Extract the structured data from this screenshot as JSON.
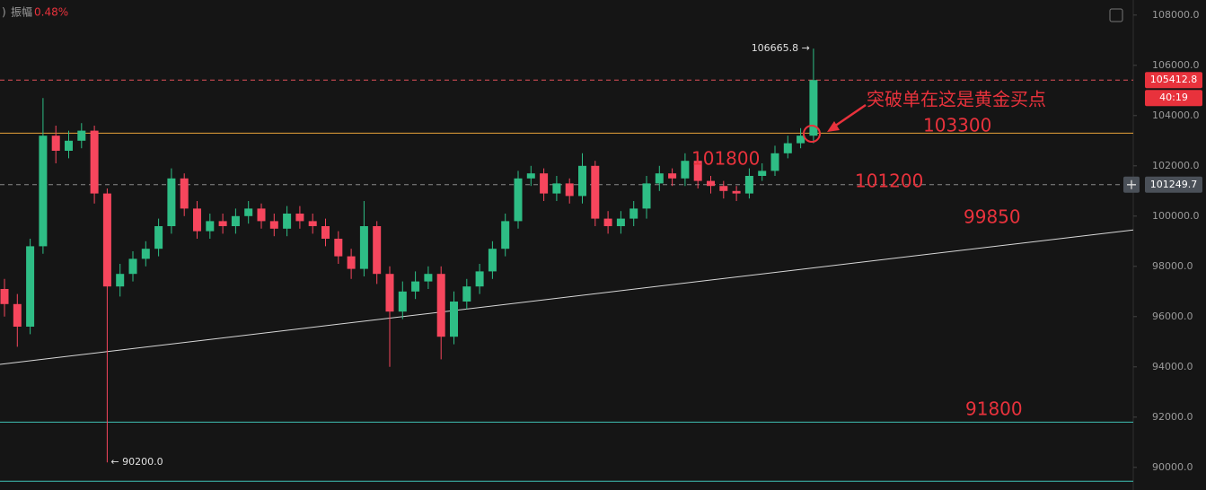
{
  "chart_data": {
    "type": "candlestick",
    "amplitude_label": "振幅",
    "amplitude": "0.48%",
    "ylim": [
      89100,
      108600
    ],
    "yticks": [
      {
        "value": 108000,
        "label": "108000.0"
      },
      {
        "value": 106000,
        "label": "106000.0"
      },
      {
        "value": 104000,
        "label": "104000.0"
      },
      {
        "value": 102000,
        "label": "102000.0"
      },
      {
        "value": 100000,
        "label": "100000.0"
      },
      {
        "value": 98000,
        "label": "98000.0"
      },
      {
        "value": 96000,
        "label": "96000.0"
      },
      {
        "value": 94000,
        "label": "94000.0"
      },
      {
        "value": 92000,
        "label": "92000.0"
      },
      {
        "value": 90000,
        "label": "90000.0"
      }
    ],
    "up_color": "#2ebd85",
    "down_color": "#f6465d",
    "candles": {
      "open": [
        97100,
        96500,
        95600,
        98800,
        103200,
        102600,
        103000,
        103400,
        100900,
        97200,
        97700,
        98300,
        98700,
        99600,
        101500,
        100300,
        99400,
        99800,
        99600,
        100000,
        100300,
        99800,
        99500,
        100100,
        99800,
        99600,
        99100,
        98400,
        97900,
        99600,
        97700,
        96200,
        97000,
        97400,
        97700,
        95200,
        96600,
        97200,
        97800,
        98700,
        99800,
        101500,
        101700,
        100900,
        101300,
        100800,
        102000,
        99900,
        99600,
        99900,
        100300,
        101300,
        101700,
        101500,
        102200,
        101400,
        101200,
        101000,
        100900,
        101600,
        101800,
        102500,
        102900,
        103200
      ],
      "high": [
        97500,
        96900,
        99100,
        104700,
        103600,
        103400,
        103700,
        103600,
        101100,
        98100,
        98600,
        99000,
        99900,
        101900,
        101700,
        100600,
        100100,
        100100,
        100300,
        100600,
        100500,
        100100,
        100400,
        100400,
        100100,
        99900,
        99400,
        98700,
        100600,
        99800,
        98000,
        97400,
        97800,
        98000,
        98000,
        97000,
        97500,
        98100,
        99000,
        100100,
        101800,
        102000,
        101900,
        101600,
        101500,
        102500,
        102200,
        100200,
        100200,
        100600,
        101600,
        102000,
        101900,
        102500,
        102400,
        101600,
        101400,
        101200,
        101900,
        102100,
        102800,
        103200,
        103500,
        106665.8
      ],
      "low": [
        96000,
        94800,
        95300,
        98500,
        102100,
        102300,
        102700,
        100500,
        90200,
        96800,
        97400,
        98000,
        98400,
        99300,
        100000,
        99100,
        99100,
        99300,
        99300,
        99700,
        99500,
        99200,
        99200,
        99500,
        99300,
        98800,
        98100,
        97500,
        97600,
        97300,
        94000,
        95900,
        96700,
        97100,
        94300,
        94900,
        96300,
        96900,
        97500,
        98400,
        99500,
        101200,
        100600,
        100600,
        100500,
        100500,
        99600,
        99300,
        99300,
        99600,
        99900,
        101000,
        101200,
        101200,
        101100,
        100900,
        100700,
        100600,
        100700,
        101400,
        101600,
        102300,
        102700,
        102900
      ],
      "close": [
        96500,
        95600,
        98800,
        103200,
        102600,
        103000,
        103400,
        100900,
        97200,
        97700,
        98300,
        98700,
        99600,
        101500,
        100300,
        99400,
        99800,
        99600,
        100000,
        100300,
        99800,
        99500,
        100100,
        99800,
        99600,
        99100,
        98400,
        97900,
        99600,
        97700,
        96200,
        97000,
        97400,
        97700,
        95200,
        96600,
        97200,
        97800,
        98700,
        99800,
        101500,
        101700,
        100900,
        101300,
        100800,
        102000,
        99900,
        99600,
        99900,
        100300,
        101300,
        101700,
        101500,
        102200,
        101400,
        101200,
        101000,
        100900,
        101600,
        101800,
        102500,
        102900,
        103200,
        105412.8
      ]
    },
    "hlines": [
      {
        "value": 105412.8,
        "color": "#e0505a",
        "style": "dashed"
      },
      {
        "value": 103300,
        "color": "#e8a33a",
        "style": "solid"
      },
      {
        "value": 101249.7,
        "color": "#8a8a8a",
        "style": "dashed"
      },
      {
        "value": 91800,
        "color": "#3fc1b5",
        "style": "solid"
      },
      {
        "value": 89450,
        "color": "#3fc1b5",
        "style": "solid"
      }
    ],
    "trendline": {
      "start": 94100,
      "end": 99450,
      "color": "#d8d8d8"
    },
    "high_marker": {
      "value": 106665.8,
      "label": "106665.8 →"
    },
    "low_marker": {
      "value": 90200,
      "label": "← 90200.0"
    },
    "price_tags": [
      {
        "value": 105412.8,
        "color": "#e8323c"
      },
      {
        "value": 101249.7,
        "color": "#4a5058"
      }
    ],
    "countdown": "40:19",
    "annotations": [
      "突破单在这是黄金买点",
      "103300",
      "101800",
      "101200",
      "99850",
      "91800"
    ]
  }
}
